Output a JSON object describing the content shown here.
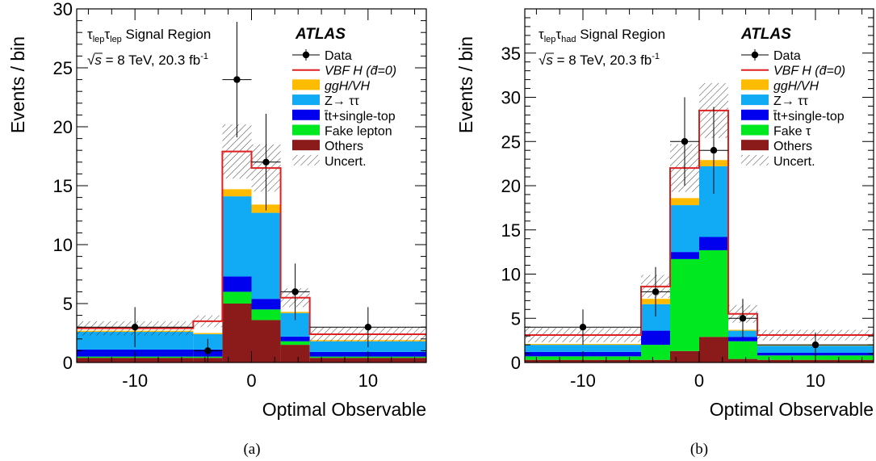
{
  "chart_data": [
    {
      "type": "bar",
      "subtype": "stacked-histogram",
      "panel_label": "(a)",
      "experiment_label": "ATLAS",
      "region_label_main": "τ",
      "region_label_sub1": "lep",
      "region_label_mid": "τ",
      "region_label_sub2": "lep",
      "region_label_tail": " Signal Region",
      "energy_prefix": "√",
      "energy_s": "s",
      "energy_text": " = 8 TeV, 20.3 fb",
      "energy_sup": "-1",
      "xlabel": "Optimal Observable",
      "ylabel": "Events / bin",
      "xlim": [
        -15,
        15
      ],
      "ylim": [
        0,
        30
      ],
      "yticks": [
        0,
        5,
        10,
        15,
        20,
        25,
        30
      ],
      "xticks": [
        -10,
        0,
        10
      ],
      "bin_edges": [
        -15,
        -5,
        -2.5,
        0,
        2.5,
        5,
        15
      ],
      "stack_order": [
        "Others",
        "Fake lepton",
        "t̄t+single-top",
        "Z→ ττ",
        "ggH/VH"
      ],
      "series": [
        {
          "name": "Others",
          "color": "#8b1a1a",
          "values": [
            0.4,
            0.4,
            5.0,
            3.6,
            1.5,
            0.4
          ]
        },
        {
          "name": "Fake lepton",
          "color": "#00e81f",
          "values": [
            0.1,
            0.1,
            1.0,
            0.9,
            0.3,
            0.1
          ]
        },
        {
          "name": "t̄t+single-top",
          "color": "#0000ee",
          "values": [
            0.6,
            0.6,
            1.3,
            0.9,
            0.4,
            0.4
          ]
        },
        {
          "name": "Z→ ττ",
          "color": "#10aaf5",
          "values": [
            1.5,
            1.3,
            6.8,
            7.3,
            2.0,
            0.9
          ]
        },
        {
          "name": "ggH/VH",
          "color": "#ffbb00",
          "values": [
            0.1,
            0.1,
            0.6,
            0.7,
            0.1,
            0.1
          ]
        }
      ],
      "signal": {
        "name": "VBF H (d̃=0)",
        "color": "#e02020",
        "values": [
          2.9,
          3.5,
          17.9,
          16.5,
          5.5,
          2.4
        ]
      },
      "uncertainty": {
        "name": "Uncert.",
        "values": [
          0.6,
          0.5,
          2.3,
          2.0,
          0.8,
          0.6
        ]
      },
      "data": {
        "name": "Data",
        "x": [
          -10,
          -3.75,
          -1.25,
          1.25,
          3.75,
          10
        ],
        "y": [
          3,
          1,
          24,
          17,
          6,
          3
        ],
        "err_lo": [
          1.7,
          1.0,
          4.9,
          4.1,
          2.4,
          1.7
        ],
        "err_hi": [
          1.7,
          1.0,
          4.9,
          4.1,
          2.4,
          1.7
        ]
      },
      "legend": [
        "Data",
        "VBF H (d̃=0)",
        "ggH/VH",
        "Z→ ττ",
        "t̄t+single-top",
        "Fake lepton",
        "Others",
        "Uncert."
      ],
      "legend_placement": "top-right"
    },
    {
      "type": "bar",
      "subtype": "stacked-histogram",
      "panel_label": "(b)",
      "experiment_label": "ATLAS",
      "region_label_main": "τ",
      "region_label_sub1": "lep",
      "region_label_mid": "τ",
      "region_label_sub2": "had",
      "region_label_tail": " Signal Region",
      "energy_prefix": "√",
      "energy_s": "s",
      "energy_text": " = 8 TeV, 20.3 fb",
      "energy_sup": "-1",
      "xlabel": "Optimal Observable",
      "ylabel": "Events / bin",
      "xlim": [
        -15,
        15
      ],
      "ylim": [
        0,
        40
      ],
      "yticks": [
        0,
        5,
        10,
        15,
        20,
        25,
        30,
        35
      ],
      "xticks": [
        -10,
        0,
        10
      ],
      "bin_edges": [
        -15,
        -5,
        -2.5,
        0,
        2.5,
        5,
        15
      ],
      "stack_order": [
        "Others",
        "Fake τ",
        "t̄t+single-top",
        "Z→ ττ",
        "ggH/VH"
      ],
      "series": [
        {
          "name": "Others",
          "color": "#8b1a1a",
          "values": [
            0.3,
            0.3,
            1.3,
            2.9,
            0.4,
            0.3
          ]
        },
        {
          "name": "Fake τ",
          "color": "#00e81f",
          "values": [
            0.4,
            1.7,
            10.4,
            9.8,
            2.0,
            0.5
          ]
        },
        {
          "name": "t̄t+single-top",
          "color": "#0000ee",
          "values": [
            0.5,
            1.6,
            0.8,
            1.5,
            0.5,
            0.3
          ]
        },
        {
          "name": "Z→ ττ",
          "color": "#10aaf5",
          "values": [
            0.8,
            3.0,
            5.3,
            8.0,
            0.7,
            0.8
          ]
        },
        {
          "name": "ggH/VH",
          "color": "#ffbb00",
          "values": [
            0.1,
            0.6,
            0.8,
            0.7,
            0.1,
            0.1
          ]
        }
      ],
      "signal": {
        "name": "VBF H (d̃=0)",
        "color": "#e02020",
        "values": [
          3.1,
          8.6,
          22.0,
          28.5,
          5.5,
          3.1
        ]
      },
      "uncertainty": {
        "name": "Uncert.",
        "values": [
          0.8,
          1.3,
          2.7,
          3.1,
          1.0,
          0.6
        ]
      },
      "data": {
        "name": "Data",
        "x": [
          -10,
          -3.75,
          -1.25,
          1.25,
          3.75,
          10
        ],
        "y": [
          4,
          8,
          25,
          24,
          5,
          2
        ],
        "err_lo": [
          2.0,
          2.8,
          5.0,
          4.9,
          2.2,
          1.4
        ],
        "err_hi": [
          2.0,
          2.8,
          5.0,
          4.9,
          2.2,
          1.4
        ]
      },
      "legend": [
        "Data",
        "VBF H (d̃=0)",
        "ggH/VH",
        "Z→ ττ",
        "t̄t+single-top",
        "Fake τ",
        "Others",
        "Uncert."
      ],
      "legend_placement": "top-right"
    }
  ]
}
